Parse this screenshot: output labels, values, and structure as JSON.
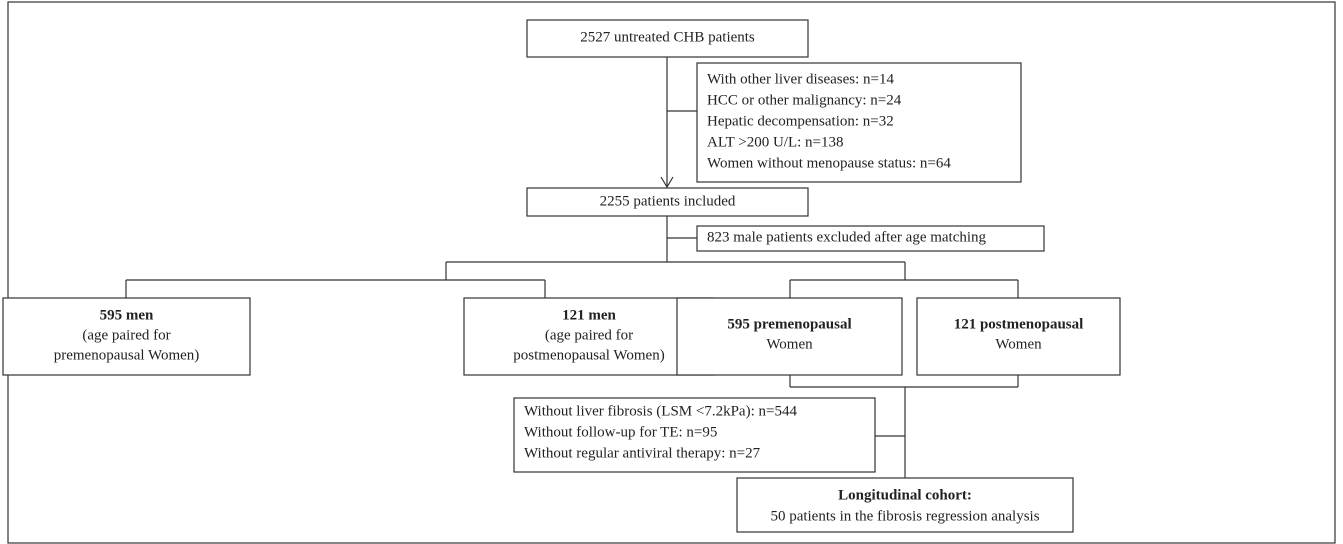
{
  "nodes": [
    {
      "lines": [
        "2527 untreated CHB patients"
      ]
    },
    {
      "lines": [
        "With other liver diseases: n=14",
        "HCC or other malignancy: n=24",
        "Hepatic decompensation: n=32",
        "ALT >200 U/L: n=138",
        "Women without menopause status: n=64"
      ]
    },
    {
      "lines": [
        "2255 patients included"
      ]
    },
    {
      "lines": [
        "823 male patients excluded after age matching"
      ]
    },
    {
      "title": "595 men",
      "lines": [
        "(age paired for",
        "premenopausal Women)"
      ]
    },
    {
      "title": "121 men",
      "lines": [
        "(age paired for",
        "postmenopausal Women)"
      ]
    },
    {
      "title": "595 premenopausal",
      "lines": [
        "Women"
      ]
    },
    {
      "title": "121 postmenopausal",
      "lines": [
        "Women"
      ]
    },
    {
      "lines": [
        "Without liver fibrosis (LSM <7.2kPa): n=544",
        "Without follow-up for TE: n=95",
        "Without regular antiviral therapy: n=27"
      ]
    },
    {
      "title": "Longitudinal cohort:",
      "lines": [
        "50 patients in the fibrosis regression analysis"
      ]
    }
  ]
}
